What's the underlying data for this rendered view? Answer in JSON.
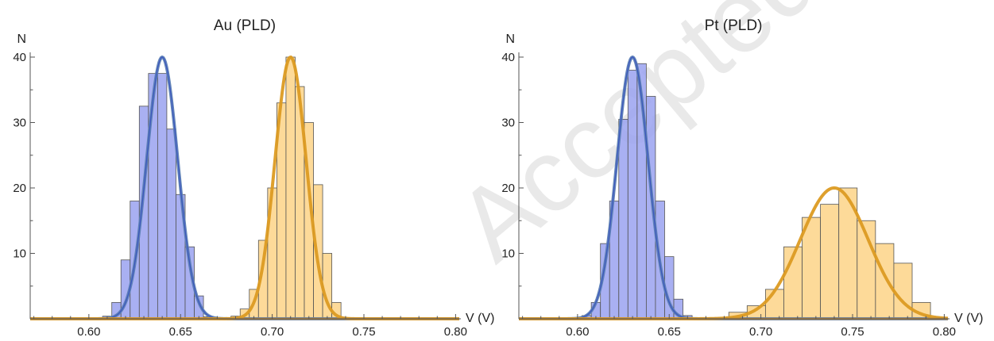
{
  "watermark": "Accepted Manuscript",
  "colors": {
    "series1_bar_fill": "#9aa2f0",
    "series1_bar_fill_top": "#b6bcf4",
    "series1_curve": "#5b7fb5",
    "series1_curve_core": "#2f43c2",
    "series2_bar_fill": "#fdd487",
    "series2_bar_fill_top": "#fbe5c4",
    "series2_curve": "#dc9b22",
    "bar_edge": "#555555",
    "axis": "#555555",
    "baseline": "#c08a3a"
  },
  "chart_data": [
    {
      "type": "bar",
      "title": "Au (PLD)",
      "xlabel": "V (V)",
      "ylabel": "N",
      "xlim": [
        0.568,
        0.802
      ],
      "ylim": [
        0,
        40
      ],
      "xticks": [
        0.6,
        0.65,
        0.7,
        0.75,
        0.8
      ],
      "xtick_labels": [
        "0.60",
        "0.65",
        "0.70",
        "0.75",
        "0.80"
      ],
      "yticks": [
        10,
        20,
        30,
        40
      ],
      "ytick_labels": [
        "10",
        "20",
        "30",
        "40"
      ],
      "bin_width": 0.005,
      "series": [
        {
          "bins_start": [
            0.6075,
            0.6125,
            0.6175,
            0.6225,
            0.6275,
            0.6325,
            0.6375,
            0.6425,
            0.6475,
            0.6525,
            0.6575,
            0.6625
          ],
          "counts": [
            0.4,
            2.5,
            9,
            18,
            32.5,
            37.5,
            37.5,
            29,
            19,
            11,
            3.5,
            0.3
          ],
          "fit": {
            "mean": 0.64,
            "sigma": 0.0085,
            "peak": 40
          }
        },
        {
          "bins_start": [
            0.6775,
            0.6825,
            0.6875,
            0.6925,
            0.6975,
            0.7025,
            0.7075,
            0.7125,
            0.7175,
            0.7225,
            0.7275,
            0.7325
          ],
          "counts": [
            0.4,
            1.5,
            4.5,
            12,
            20,
            33,
            40,
            35.5,
            30,
            20.5,
            10,
            2.5
          ],
          "fit": {
            "mean": 0.71,
            "sigma": 0.0085,
            "peak": 40
          }
        }
      ]
    },
    {
      "type": "bar",
      "title": "Pt (PLD)",
      "xlabel": "V (V)",
      "ylabel": "N",
      "xlim": [
        0.568,
        0.802
      ],
      "ylim": [
        0,
        40
      ],
      "xticks": [
        0.6,
        0.65,
        0.7,
        0.75,
        0.8
      ],
      "xtick_labels": [
        "0.60",
        "0.65",
        "0.70",
        "0.75",
        "0.80"
      ],
      "yticks": [
        10,
        20,
        30,
        40
      ],
      "ytick_labels": [
        "10",
        "20",
        "30",
        "40"
      ],
      "bin_width": 0.005,
      "series": [
        {
          "bins_start": [
            0.6025,
            0.6075,
            0.6125,
            0.6175,
            0.6225,
            0.6275,
            0.6325,
            0.6375,
            0.6425,
            0.6475,
            0.6525,
            0.6575
          ],
          "counts": [
            0.5,
            2.5,
            11.5,
            18,
            30.5,
            38,
            39,
            34,
            18,
            9.5,
            3,
            0.5
          ],
          "fit": {
            "mean": 0.63,
            "sigma": 0.0085,
            "peak": 40
          }
        },
        {
          "bins_start": [
            0.6825,
            0.6925,
            0.7025,
            0.7125,
            0.7225,
            0.7325,
            0.7425,
            0.7525,
            0.7625,
            0.7725,
            0.7825
          ],
          "counts": [
            1,
            2,
            4.5,
            11,
            15.5,
            17.5,
            20,
            15,
            11.5,
            8.5,
            2.5
          ],
          "bin_width": 0.01,
          "fit": {
            "mean": 0.74,
            "sigma": 0.0185,
            "peak": 20
          }
        }
      ]
    }
  ]
}
